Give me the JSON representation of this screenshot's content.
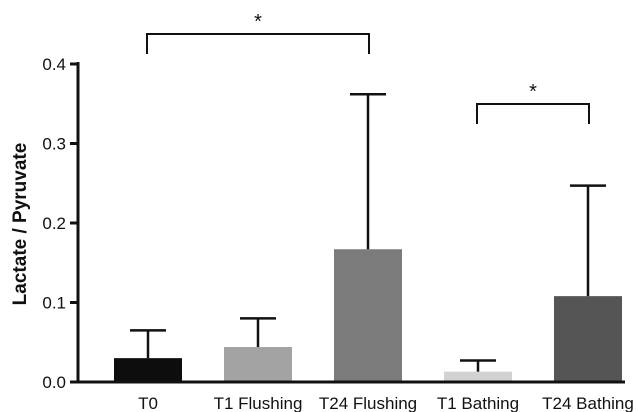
{
  "chart_data": {
    "type": "bar",
    "title": "",
    "xlabel": "",
    "ylabel": "Lactate / Pyruvate",
    "ylim": [
      0,
      0.4
    ],
    "yticks": [
      "0.0",
      "0.1",
      "0.2",
      "0.3",
      "0.4"
    ],
    "ytick_values": [
      0,
      0.1,
      0.2,
      0.3,
      0.4
    ],
    "categories": [
      "T0",
      "T1 Flushing",
      "T24 Flushing",
      "T1 Bathing",
      "T24 Bathing"
    ],
    "values": [
      0.03,
      0.044,
      0.167,
      0.013,
      0.108
    ],
    "error_upper": [
      0.065,
      0.08,
      0.362,
      0.027,
      0.247
    ],
    "bar_colors": [
      "#0d0d0d",
      "#a3a3a3",
      "#7b7b7b",
      "#d2d2d2",
      "#555555"
    ],
    "grid": false,
    "significance": [
      {
        "from": "T0",
        "to": "T24 Flushing",
        "label": "*"
      },
      {
        "from": "T1 Bathing",
        "to": "T24 Bathing",
        "label": "*"
      }
    ]
  }
}
